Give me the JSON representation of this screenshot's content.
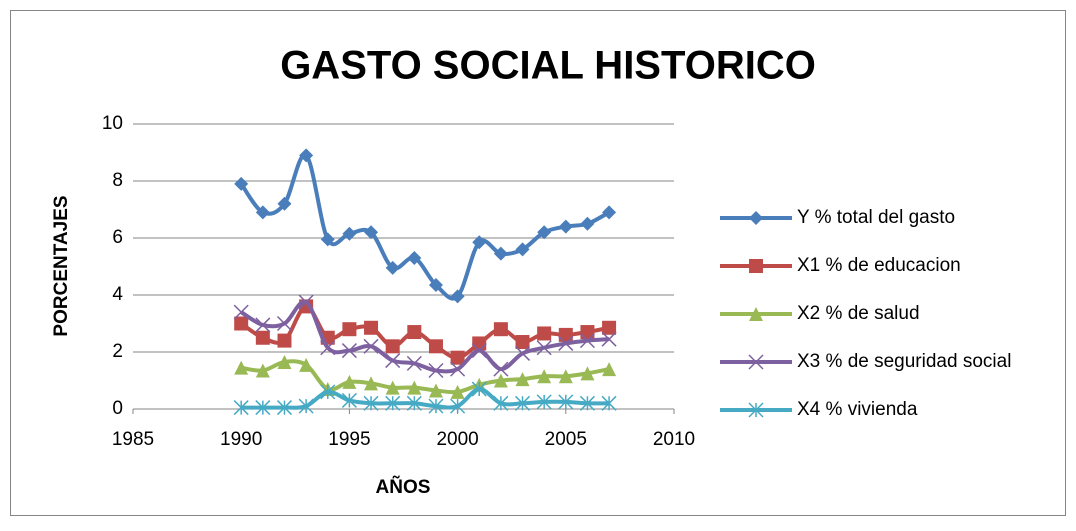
{
  "chart_data": {
    "type": "line",
    "title": "GASTO SOCIAL HISTORICO",
    "x_label": "AÑOS",
    "y_label": "PORCENTAJES",
    "x": [
      1990,
      1991,
      1992,
      1993,
      1994,
      1995,
      1996,
      1997,
      1998,
      1999,
      2000,
      2001,
      2002,
      2003,
      2004,
      2005,
      2006,
      2007
    ],
    "series": [
      {
        "name": "Y % total del gasto",
        "color": "#4a7ebb",
        "marker": "diamond",
        "values": [
          7.9,
          6.9,
          7.2,
          8.9,
          5.95,
          6.15,
          6.2,
          4.95,
          5.3,
          4.35,
          3.95,
          5.85,
          5.45,
          5.6,
          6.2,
          6.4,
          6.5,
          6.9
        ]
      },
      {
        "name": "X1 % de educacion",
        "color": "#be4b48",
        "marker": "square",
        "values": [
          3.0,
          2.5,
          2.4,
          3.6,
          2.5,
          2.8,
          2.85,
          2.2,
          2.7,
          2.2,
          1.8,
          2.3,
          2.8,
          2.35,
          2.65,
          2.6,
          2.7,
          2.85
        ]
      },
      {
        "name": "X2 % de salud",
        "color": "#98b954",
        "marker": "triangle",
        "values": [
          1.45,
          1.35,
          1.65,
          1.55,
          0.7,
          0.95,
          0.9,
          0.75,
          0.75,
          0.65,
          0.6,
          0.85,
          1.0,
          1.05,
          1.15,
          1.15,
          1.25,
          1.4
        ]
      },
      {
        "name": "X3 % de seguridad social",
        "color": "#7d60a0",
        "marker": "x",
        "values": [
          3.4,
          2.95,
          3.0,
          3.75,
          2.15,
          2.05,
          2.2,
          1.7,
          1.6,
          1.35,
          1.4,
          2.05,
          1.4,
          1.95,
          2.15,
          2.3,
          2.4,
          2.45
        ]
      },
      {
        "name": "X4 % vivienda",
        "color": "#46aac5",
        "marker": "star",
        "values": [
          0.05,
          0.05,
          0.05,
          0.1,
          0.6,
          0.3,
          0.2,
          0.2,
          0.2,
          0.1,
          0.1,
          0.7,
          0.2,
          0.2,
          0.25,
          0.25,
          0.2,
          0.2
        ]
      }
    ],
    "xlim": [
      1985,
      2010
    ],
    "xticks": [
      1985,
      1990,
      1995,
      2000,
      2005,
      2010
    ],
    "ylim": [
      0,
      10
    ],
    "yticks": [
      0,
      2,
      4,
      6,
      8,
      10
    ],
    "grid": true,
    "smooth": true,
    "legend": "right"
  }
}
